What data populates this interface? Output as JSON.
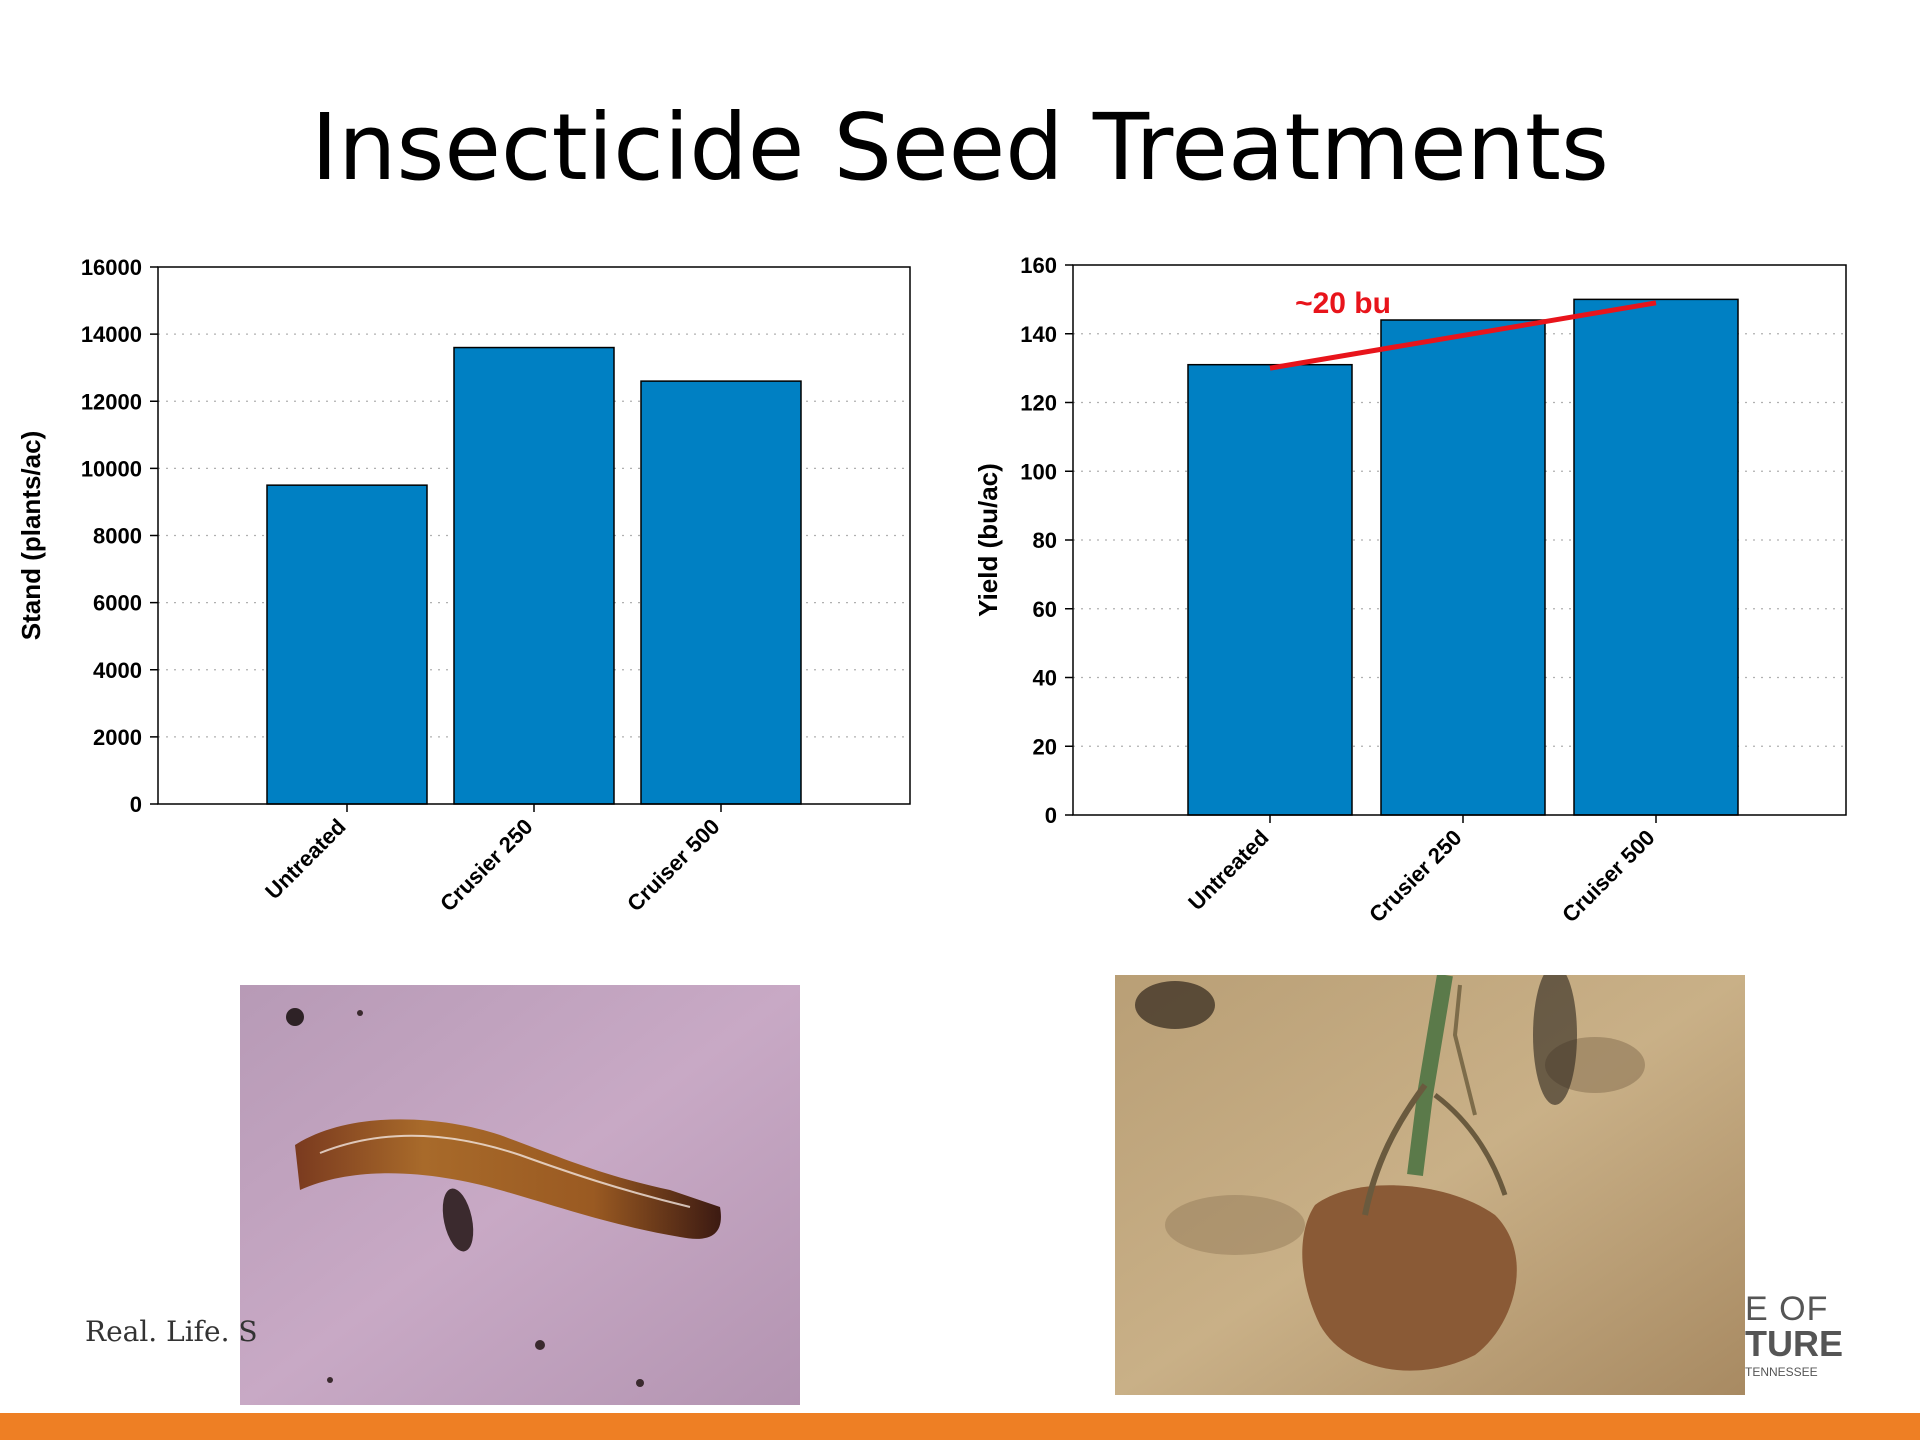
{
  "slide": {
    "title": "Insecticide Seed Treatments",
    "footer_tagline": "Real. Life. S",
    "logo_line1": "E OF",
    "logo_line2": "TURE",
    "logo_line3": "TENNESSEE",
    "accent_color": "#EE7F24"
  },
  "chart_data": [
    {
      "type": "bar",
      "categories": [
        "Untreated",
        "Crusier 250",
        "Cruiser 500"
      ],
      "values": [
        9500,
        13600,
        12600
      ],
      "ylabel": "Stand (plants/ac)",
      "xlabel": "",
      "ylim": [
        0,
        16000
      ],
      "yticks": [
        0,
        2000,
        4000,
        6000,
        8000,
        10000,
        12000,
        14000,
        16000
      ],
      "grid": true,
      "bar_color": "#0080C3"
    },
    {
      "type": "bar",
      "categories": [
        "Untreated",
        "Crusier 250",
        "Cruiser 500"
      ],
      "values": [
        131,
        144,
        150
      ],
      "ylabel": "Yield (bu/ac)",
      "xlabel": "",
      "ylim": [
        0,
        160
      ],
      "yticks": [
        0,
        20,
        40,
        60,
        80,
        100,
        120,
        140,
        160
      ],
      "grid": true,
      "bar_color": "#0080C3",
      "annotation": {
        "text": "~20 bu",
        "color": "#E8141B",
        "line_from": {
          "category": "Untreated",
          "value": 130
        },
        "line_to": {
          "category": "Cruiser 500",
          "value": 149
        }
      }
    }
  ],
  "photos": [
    {
      "subject": "cutworm larva on surface",
      "icon": "larva-photo"
    },
    {
      "subject": "damaged corn seedling in soil",
      "icon": "seedling-photo"
    }
  ]
}
